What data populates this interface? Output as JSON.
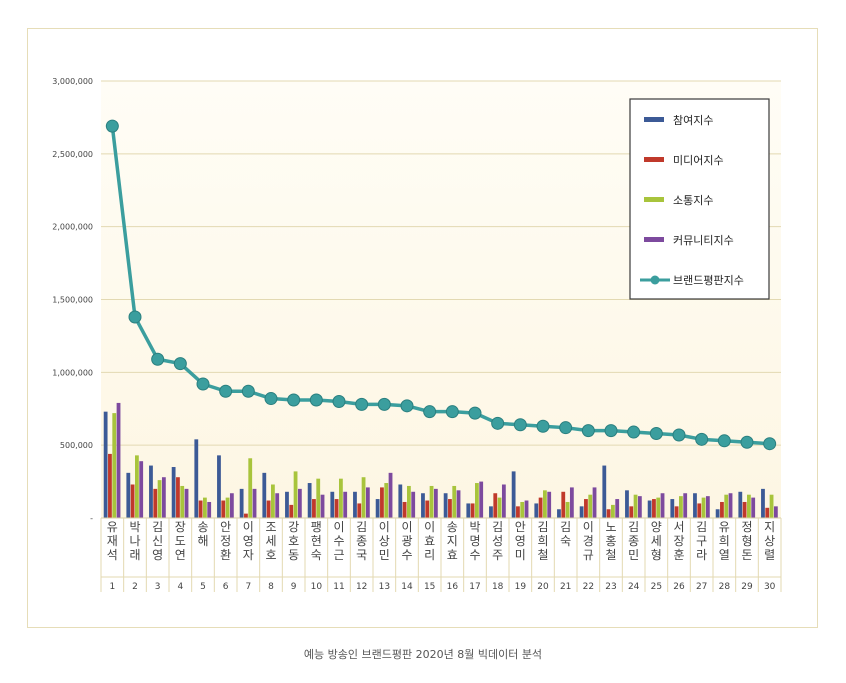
{
  "caption": "예능 방송인 브랜드평판 2020년 8월 빅데이터 분석",
  "chart_data": {
    "type": "bar",
    "title": "",
    "xlabel": "",
    "ylabel": "",
    "ylim": [
      0,
      3000000
    ],
    "yticks": [
      0,
      500000,
      1000000,
      1500000,
      2000000,
      2500000,
      3000000
    ],
    "ytick_labels": [
      "-",
      "500,000",
      "1,000,000",
      "1,500,000",
      "2,000,000",
      "2,500,000",
      "3,000,000"
    ],
    "grid": true,
    "legend_position": "top-right",
    "categories": [
      "유재석",
      "박나래",
      "김신영",
      "장도연",
      "송해",
      "안정환",
      "이영자",
      "조세호",
      "강호동",
      "팽현숙",
      "이수근",
      "김종국",
      "이상민",
      "이광수",
      "이효리",
      "송지효",
      "박명수",
      "김성주",
      "안영미",
      "김희철",
      "김숙",
      "이경규",
      "노홍철",
      "김종민",
      "양세형",
      "서장훈",
      "김구라",
      "유희열",
      "정형돈",
      "지상렬"
    ],
    "ranks": [
      "1",
      "2",
      "3",
      "4",
      "5",
      "6",
      "7",
      "8",
      "9",
      "10",
      "11",
      "12",
      "13",
      "14",
      "15",
      "16",
      "17",
      "18",
      "19",
      "20",
      "21",
      "22",
      "23",
      "24",
      "25",
      "26",
      "27",
      "28",
      "29",
      "30"
    ],
    "series": [
      {
        "name": "참여지수",
        "type": "bar",
        "color": "#3c5a96",
        "values": [
          730000,
          310000,
          360000,
          350000,
          540000,
          430000,
          200000,
          310000,
          180000,
          240000,
          180000,
          180000,
          130000,
          230000,
          170000,
          170000,
          100000,
          80000,
          320000,
          100000,
          60000,
          80000,
          360000,
          190000,
          120000,
          130000,
          170000,
          60000,
          180000,
          200000
        ]
      },
      {
        "name": "미디어지수",
        "type": "bar",
        "color": "#c0392b",
        "values": [
          440000,
          230000,
          200000,
          280000,
          120000,
          120000,
          30000,
          120000,
          90000,
          130000,
          130000,
          100000,
          210000,
          110000,
          120000,
          130000,
          100000,
          170000,
          80000,
          140000,
          180000,
          130000,
          60000,
          80000,
          130000,
          80000,
          100000,
          110000,
          110000,
          70000
        ]
      },
      {
        "name": "소통지수",
        "type": "bar",
        "color": "#a8c43c",
        "values": [
          720000,
          430000,
          260000,
          220000,
          140000,
          140000,
          410000,
          230000,
          320000,
          270000,
          270000,
          280000,
          240000,
          220000,
          220000,
          220000,
          240000,
          140000,
          110000,
          190000,
          110000,
          160000,
          90000,
          160000,
          140000,
          150000,
          140000,
          160000,
          160000,
          160000
        ]
      },
      {
        "name": "커뮤니티지수",
        "type": "bar",
        "color": "#7d4a9e",
        "values": [
          790000,
          390000,
          280000,
          200000,
          110000,
          170000,
          200000,
          170000,
          200000,
          160000,
          180000,
          210000,
          310000,
          180000,
          200000,
          190000,
          250000,
          230000,
          120000,
          180000,
          210000,
          210000,
          130000,
          150000,
          170000,
          170000,
          150000,
          170000,
          140000,
          80000
        ]
      },
      {
        "name": "브랜드평판지수",
        "type": "line",
        "color": "#3b9e9e",
        "values": [
          2690000,
          1380000,
          1090000,
          1060000,
          920000,
          870000,
          870000,
          820000,
          810000,
          810000,
          800000,
          780000,
          780000,
          770000,
          730000,
          730000,
          720000,
          650000,
          640000,
          630000,
          620000,
          600000,
          600000,
          590000,
          580000,
          570000,
          540000,
          530000,
          520000,
          510000
        ]
      }
    ]
  }
}
